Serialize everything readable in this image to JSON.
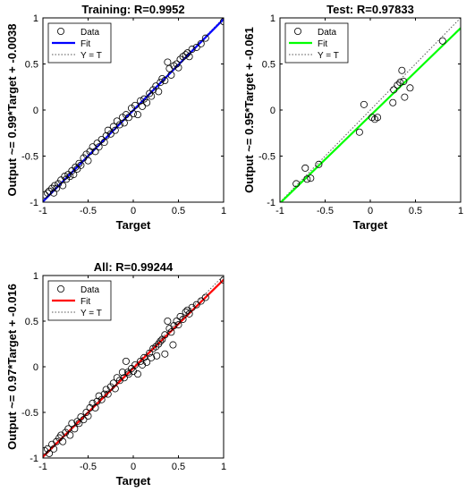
{
  "chart_data": [
    {
      "type": "scatter",
      "title": "Training: R=0.9952",
      "xlabel": "Target",
      "ylabel": "Output ~= 0.99*Target + -0.0038",
      "xlim": [
        -1,
        1
      ],
      "ylim": [
        -1,
        1
      ],
      "xticks": [
        "-1",
        "-0.5",
        "0",
        "0.5",
        "1"
      ],
      "yticks": [
        "-1",
        "-0.5",
        "0",
        "0.5",
        "1"
      ],
      "fit": {
        "slope": 0.99,
        "intercept": -0.0038,
        "color": "#0000ff"
      },
      "legend": [
        "Data",
        "Fit",
        "Y = T"
      ],
      "legend_position": "top-left",
      "series": [
        {
          "name": "Data",
          "points": [
            [
              -0.98,
              -0.92
            ],
            [
              -0.95,
              -0.9
            ],
            [
              -0.93,
              -0.88
            ],
            [
              -0.9,
              -0.85
            ],
            [
              -0.88,
              -0.9
            ],
            [
              -0.87,
              -0.82
            ],
            [
              -0.85,
              -0.85
            ],
            [
              -0.83,
              -0.8
            ],
            [
              -0.8,
              -0.76
            ],
            [
              -0.78,
              -0.82
            ],
            [
              -0.76,
              -0.72
            ],
            [
              -0.74,
              -0.75
            ],
            [
              -0.72,
              -0.7
            ],
            [
              -0.7,
              -0.72
            ],
            [
              -0.68,
              -0.66
            ],
            [
              -0.66,
              -0.7
            ],
            [
              -0.64,
              -0.62
            ],
            [
              -0.62,
              -0.64
            ],
            [
              -0.6,
              -0.58
            ],
            [
              -0.58,
              -0.6
            ],
            [
              -0.55,
              -0.52
            ],
            [
              -0.52,
              -0.48
            ],
            [
              -0.5,
              -0.55
            ],
            [
              -0.48,
              -0.45
            ],
            [
              -0.45,
              -0.4
            ],
            [
              -0.42,
              -0.45
            ],
            [
              -0.4,
              -0.36
            ],
            [
              -0.38,
              -0.4
            ],
            [
              -0.35,
              -0.32
            ],
            [
              -0.32,
              -0.35
            ],
            [
              -0.3,
              -0.28
            ],
            [
              -0.28,
              -0.22
            ],
            [
              -0.25,
              -0.26
            ],
            [
              -0.22,
              -0.18
            ],
            [
              -0.2,
              -0.22
            ],
            [
              -0.18,
              -0.12
            ],
            [
              -0.15,
              -0.16
            ],
            [
              -0.12,
              -0.08
            ],
            [
              -0.1,
              -0.14
            ],
            [
              -0.08,
              -0.05
            ],
            [
              -0.05,
              -0.08
            ],
            [
              -0.02,
              0.02
            ],
            [
              0.0,
              -0.04
            ],
            [
              0.02,
              0.05
            ],
            [
              0.05,
              -0.05
            ],
            [
              0.08,
              0.1
            ],
            [
              0.1,
              0.04
            ],
            [
              0.12,
              0.12
            ],
            [
              0.15,
              0.08
            ],
            [
              0.18,
              0.18
            ],
            [
              0.2,
              0.15
            ],
            [
              0.22,
              0.22
            ],
            [
              0.25,
              0.26
            ],
            [
              0.28,
              0.2
            ],
            [
              0.3,
              0.3
            ],
            [
              0.32,
              0.34
            ],
            [
              0.35,
              0.32
            ],
            [
              0.38,
              0.52
            ],
            [
              0.4,
              0.45
            ],
            [
              0.42,
              0.38
            ],
            [
              0.45,
              0.48
            ],
            [
              0.48,
              0.5
            ],
            [
              0.5,
              0.46
            ],
            [
              0.52,
              0.55
            ],
            [
              0.55,
              0.58
            ],
            [
              0.58,
              0.6
            ],
            [
              0.6,
              0.62
            ],
            [
              0.62,
              0.58
            ],
            [
              0.65,
              0.66
            ],
            [
              0.7,
              0.68
            ],
            [
              0.75,
              0.72
            ],
            [
              0.8,
              0.78
            ],
            [
              1.0,
              0.96
            ]
          ]
        }
      ]
    },
    {
      "type": "scatter",
      "title": "Test: R=0.97833",
      "xlabel": "Target",
      "ylabel": "Output ~= 0.95*Target + -0.061",
      "xlim": [
        -1,
        1
      ],
      "ylim": [
        -1,
        1
      ],
      "xticks": [
        "-1",
        "-0.5",
        "0",
        "0.5",
        "1"
      ],
      "yticks": [
        "-1",
        "-0.5",
        "0",
        "0.5",
        "1"
      ],
      "fit": {
        "slope": 0.95,
        "intercept": -0.061,
        "color": "#00ff00"
      },
      "legend": [
        "Data",
        "Fit",
        "Y = T"
      ],
      "legend_position": "top-left",
      "series": [
        {
          "name": "Data",
          "points": [
            [
              -0.82,
              -0.8
            ],
            [
              -0.72,
              -0.63
            ],
            [
              -0.7,
              -0.75
            ],
            [
              -0.66,
              -0.74
            ],
            [
              -0.57,
              -0.59
            ],
            [
              -0.12,
              -0.24
            ],
            [
              -0.07,
              0.06
            ],
            [
              0.02,
              -0.08
            ],
            [
              0.05,
              -0.1
            ],
            [
              0.08,
              -0.08
            ],
            [
              0.25,
              0.08
            ],
            [
              0.26,
              0.22
            ],
            [
              0.3,
              0.27
            ],
            [
              0.33,
              0.3
            ],
            [
              0.35,
              0.43
            ],
            [
              0.37,
              0.31
            ],
            [
              0.38,
              0.14
            ],
            [
              0.44,
              0.24
            ],
            [
              0.8,
              0.75
            ]
          ]
        }
      ]
    },
    {
      "type": "scatter",
      "title": "All: R=0.99244",
      "xlabel": "Target",
      "ylabel": "Output ~= 0.97*Target + -0.016",
      "xlim": [
        -1,
        1
      ],
      "ylim": [
        -1,
        1
      ],
      "xticks": [
        "-1",
        "-0.5",
        "0",
        "0.5",
        "1"
      ],
      "yticks": [
        "-1",
        "-0.5",
        "0",
        "0.5",
        "1"
      ],
      "fit": {
        "slope": 0.97,
        "intercept": -0.016,
        "color": "#ff0000"
      },
      "legend": [
        "Data",
        "Fit",
        "Y = T"
      ],
      "legend_position": "top-left",
      "series": [
        {
          "name": "Data",
          "points": [
            [
              -0.98,
              -0.92
            ],
            [
              -0.95,
              -0.9
            ],
            [
              -0.93,
              -0.95
            ],
            [
              -0.9,
              -0.85
            ],
            [
              -0.88,
              -0.9
            ],
            [
              -0.85,
              -0.82
            ],
            [
              -0.82,
              -0.78
            ],
            [
              -0.8,
              -0.75
            ],
            [
              -0.78,
              -0.82
            ],
            [
              -0.75,
              -0.72
            ],
            [
              -0.72,
              -0.68
            ],
            [
              -0.7,
              -0.75
            ],
            [
              -0.68,
              -0.62
            ],
            [
              -0.65,
              -0.68
            ],
            [
              -0.62,
              -0.6
            ],
            [
              -0.6,
              -0.62
            ],
            [
              -0.58,
              -0.55
            ],
            [
              -0.55,
              -0.58
            ],
            [
              -0.52,
              -0.5
            ],
            [
              -0.5,
              -0.54
            ],
            [
              -0.48,
              -0.45
            ],
            [
              -0.45,
              -0.4
            ],
            [
              -0.42,
              -0.45
            ],
            [
              -0.4,
              -0.38
            ],
            [
              -0.38,
              -0.32
            ],
            [
              -0.35,
              -0.36
            ],
            [
              -0.32,
              -0.3
            ],
            [
              -0.3,
              -0.25
            ],
            [
              -0.28,
              -0.3
            ],
            [
              -0.25,
              -0.22
            ],
            [
              -0.22,
              -0.18
            ],
            [
              -0.2,
              -0.24
            ],
            [
              -0.18,
              -0.12
            ],
            [
              -0.15,
              -0.15
            ],
            [
              -0.12,
              -0.06
            ],
            [
              -0.1,
              -0.12
            ],
            [
              -0.08,
              0.06
            ],
            [
              -0.06,
              -0.06
            ],
            [
              -0.05,
              -0.08
            ],
            [
              -0.02,
              -0.02
            ],
            [
              0.0,
              -0.05
            ],
            [
              0.02,
              0.02
            ],
            [
              0.05,
              -0.08
            ],
            [
              0.08,
              0.06
            ],
            [
              0.1,
              0.02
            ],
            [
              0.12,
              0.1
            ],
            [
              0.15,
              0.05
            ],
            [
              0.18,
              0.15
            ],
            [
              0.2,
              0.1
            ],
            [
              0.22,
              0.2
            ],
            [
              0.25,
              0.22
            ],
            [
              0.26,
              0.12
            ],
            [
              0.28,
              0.25
            ],
            [
              0.3,
              0.28
            ],
            [
              0.32,
              0.3
            ],
            [
              0.35,
              0.35
            ],
            [
              0.35,
              0.14
            ],
            [
              0.38,
              0.5
            ],
            [
              0.4,
              0.42
            ],
            [
              0.42,
              0.38
            ],
            [
              0.44,
              0.24
            ],
            [
              0.45,
              0.45
            ],
            [
              0.48,
              0.5
            ],
            [
              0.5,
              0.46
            ],
            [
              0.52,
              0.55
            ],
            [
              0.55,
              0.52
            ],
            [
              0.58,
              0.6
            ],
            [
              0.6,
              0.62
            ],
            [
              0.62,
              0.58
            ],
            [
              0.65,
              0.65
            ],
            [
              0.7,
              0.68
            ],
            [
              0.75,
              0.72
            ],
            [
              0.8,
              0.76
            ],
            [
              1.0,
              0.95
            ]
          ]
        }
      ]
    }
  ],
  "styles": {
    "marker_color": "#000000",
    "ideal_line_color": "#555555",
    "axes_color": "#000000"
  }
}
